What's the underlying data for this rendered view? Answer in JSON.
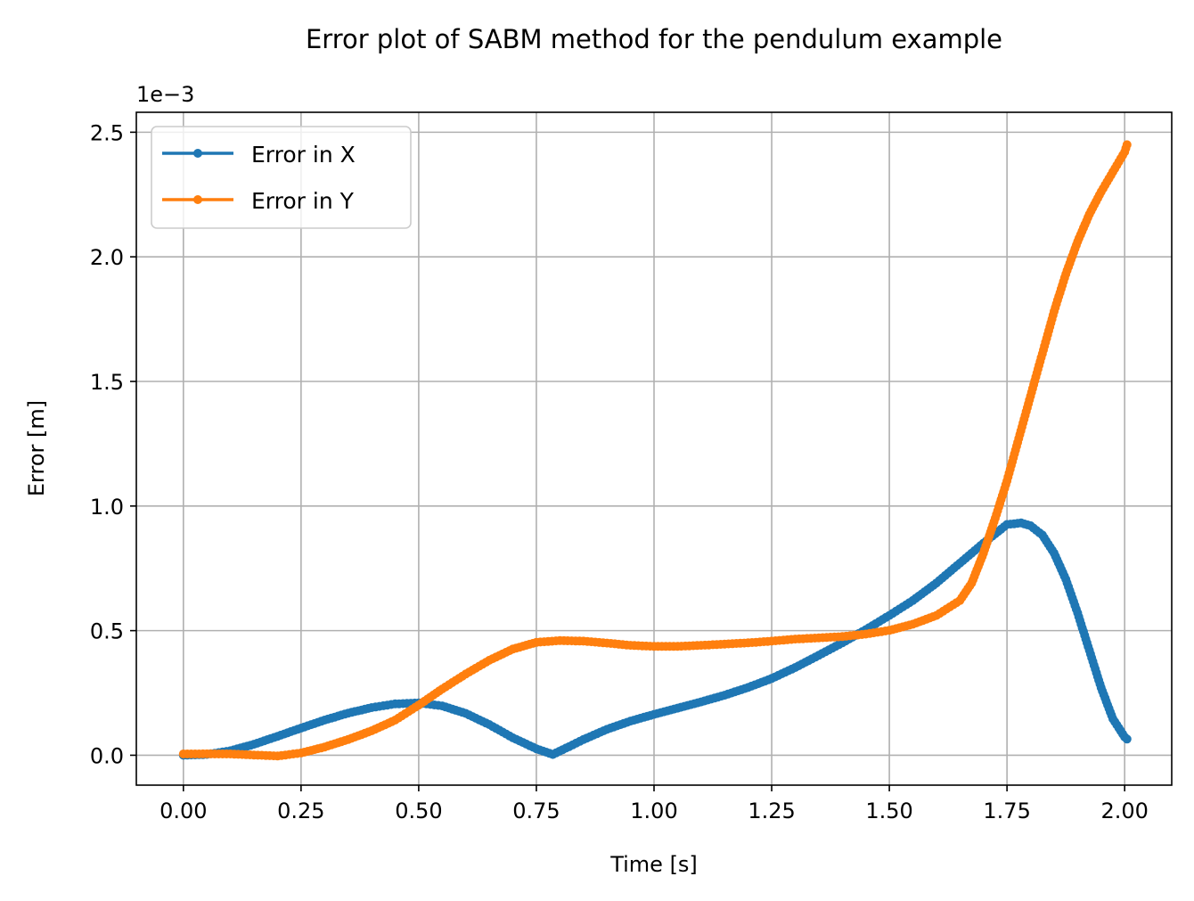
{
  "chart_data": {
    "type": "line",
    "title": "Error plot of SABM method for the pendulum example",
    "xlabel": "Time [s]",
    "ylabel": "Error [m]",
    "y_offset_label": "1e−3",
    "y_scale_factor": 0.001,
    "xlim": [
      -0.1,
      2.1
    ],
    "ylim": [
      -0.00012,
      0.00258
    ],
    "xticks": [
      0.0,
      0.25,
      0.5,
      0.75,
      1.0,
      1.25,
      1.5,
      1.75,
      2.0
    ],
    "xtick_labels": [
      "0.00",
      "0.25",
      "0.50",
      "0.75",
      "1.00",
      "1.25",
      "1.50",
      "1.75",
      "2.00"
    ],
    "yticks": [
      0.0,
      0.0005,
      0.001,
      0.0015,
      0.002,
      0.0025
    ],
    "ytick_labels": [
      "0.0",
      "0.5",
      "1.0",
      "1.5",
      "2.0",
      "2.5"
    ],
    "grid": true,
    "legend_position": "upper-left",
    "series": [
      {
        "name": "Error in X",
        "color": "#1f77b4",
        "marker": "circle",
        "x": [
          0.0,
          0.05,
          0.1,
          0.15,
          0.2,
          0.25,
          0.3,
          0.35,
          0.4,
          0.45,
          0.5,
          0.55,
          0.6,
          0.65,
          0.7,
          0.75,
          0.785,
          0.82,
          0.85,
          0.9,
          0.95,
          1.0,
          1.05,
          1.1,
          1.15,
          1.2,
          1.25,
          1.3,
          1.35,
          1.4,
          1.45,
          1.5,
          1.55,
          1.6,
          1.65,
          1.7,
          1.75,
          1.78,
          1.8,
          1.825,
          1.85,
          1.875,
          1.9,
          1.925,
          1.95,
          1.975,
          2.0,
          2.005
        ],
        "y": [
          0.0,
          3.3e-06,
          1.8e-05,
          4.4e-05,
          7.6e-05,
          0.000109,
          0.000141,
          0.000169,
          0.000191,
          0.000206,
          0.00021,
          0.000198,
          0.000168,
          0.000123,
          7e-05,
          2.6e-05,
          3e-06,
          3.5e-05,
          6.3e-05,
          0.000104,
          0.000137,
          0.000164,
          0.000189,
          0.000214,
          0.000241,
          0.000272,
          0.000308,
          0.000352,
          0.000401,
          0.000451,
          0.000504,
          0.000561,
          0.000621,
          0.000691,
          0.000771,
          0.000851,
          0.000926,
          0.000932,
          0.000921,
          0.000884,
          0.000811,
          0.000706,
          0.000571,
          0.000421,
          0.000271,
          0.000146,
          7.3e-05,
          6.5e-05
        ]
      },
      {
        "name": "Error in Y",
        "color": "#ff7f0e",
        "marker": "circle",
        "x": [
          0.0,
          0.05,
          0.1,
          0.15,
          0.2,
          0.25,
          0.3,
          0.35,
          0.4,
          0.45,
          0.5,
          0.55,
          0.6,
          0.65,
          0.7,
          0.75,
          0.8,
          0.85,
          0.9,
          0.95,
          1.0,
          1.05,
          1.1,
          1.15,
          1.2,
          1.25,
          1.3,
          1.35,
          1.4,
          1.45,
          1.5,
          1.55,
          1.6,
          1.65,
          1.675,
          1.7,
          1.725,
          1.75,
          1.775,
          1.8,
          1.825,
          1.85,
          1.875,
          1.9,
          1.925,
          1.95,
          1.975,
          2.0,
          2.005
        ],
        "y": [
          5e-06,
          5.5e-06,
          5e-06,
          1e-06,
          -3e-06,
          9e-06,
          3.3e-05,
          6.3e-05,
          9.8e-05,
          0.000141,
          0.000201,
          0.000266,
          0.000326,
          0.000381,
          0.000426,
          0.000453,
          0.00046,
          0.000458,
          0.00045,
          0.000441,
          0.000437,
          0.000437,
          0.000441,
          0.000446,
          0.000451,
          0.000458,
          0.000466,
          0.000471,
          0.000476,
          0.000486,
          0.000501,
          0.000526,
          0.000561,
          0.000621,
          0.000691,
          0.000811,
          0.000951,
          0.001101,
          0.001271,
          0.001441,
          0.001611,
          0.001781,
          0.001931,
          0.002061,
          0.002171,
          0.002261,
          0.002341,
          0.002421,
          0.00245
        ]
      }
    ]
  }
}
